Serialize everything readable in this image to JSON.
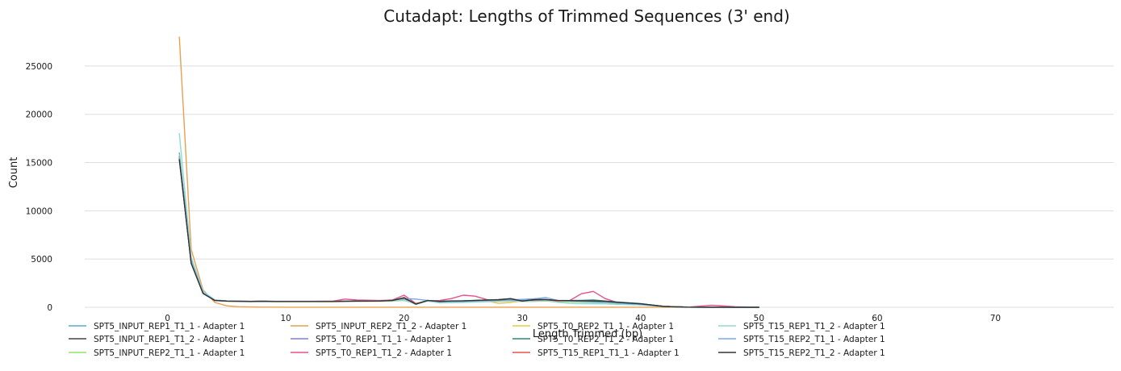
{
  "chart_data": {
    "type": "line",
    "title": "Cutadapt: Lengths of Trimmed Sequences (3' end)",
    "xlabel": "Length Trimmed (bp)",
    "ylabel": "Count",
    "xlim": [
      -7,
      80
    ],
    "ylim": [
      0,
      28500
    ],
    "xticks": [
      0,
      10,
      20,
      30,
      40,
      50,
      60,
      70
    ],
    "yticks": [
      0,
      5000,
      10000,
      15000,
      20000,
      25000
    ],
    "grid": "horizontal",
    "legend_position": "bottom",
    "x": [
      1,
      2,
      3,
      4,
      5,
      6,
      7,
      8,
      9,
      10,
      12,
      14,
      15,
      16,
      18,
      19,
      20,
      21,
      22,
      23,
      24,
      25,
      26,
      27,
      28,
      29,
      30,
      31,
      32,
      33,
      34,
      35,
      36,
      37,
      38,
      40,
      42,
      44,
      46,
      48,
      50
    ],
    "series": [
      {
        "name": "SPT5_INPUT_REP1_T1_1 - Adapter 1",
        "color": "#5fa8d3",
        "values": [
          16000,
          5000,
          1600,
          750,
          650,
          620,
          600,
          620,
          600,
          600,
          600,
          600,
          620,
          640,
          650,
          700,
          800,
          350,
          700,
          500,
          550,
          600,
          620,
          650,
          700,
          750,
          700,
          700,
          800,
          650,
          600,
          550,
          500,
          480,
          400,
          300,
          80,
          20,
          5,
          0,
          0
        ]
      },
      {
        "name": "SPT5_INPUT_REP1_T1_2 - Adapter 1",
        "color": "#444444",
        "values": [
          15400,
          4600,
          1450,
          720,
          640,
          620,
          600,
          620,
          600,
          600,
          600,
          600,
          620,
          640,
          650,
          700,
          1000,
          320,
          700,
          600,
          650,
          650,
          700,
          750,
          800,
          900,
          650,
          800,
          800,
          700,
          680,
          650,
          620,
          600,
          500,
          350,
          80,
          20,
          5,
          0,
          0
        ]
      },
      {
        "name": "SPT5_INPUT_REP2_T1_1 - Adapter 1",
        "color": "#8fe36b",
        "values": [
          15800,
          4800,
          1500,
          700,
          620,
          600,
          580,
          600,
          580,
          580,
          580,
          580,
          600,
          600,
          620,
          650,
          700,
          400,
          650,
          500,
          520,
          550,
          580,
          600,
          620,
          650,
          600,
          620,
          650,
          600,
          580,
          550,
          520,
          500,
          420,
          300,
          70,
          20,
          5,
          0,
          0
        ]
      },
      {
        "name": "SPT5_INPUT_REP2_T1_2 - Adapter 1",
        "color": "#e8a050",
        "values": [
          28000,
          6000,
          1800,
          500,
          150,
          60,
          30,
          20,
          15,
          10,
          10,
          10,
          10,
          10,
          10,
          10,
          10,
          10,
          10,
          10,
          10,
          10,
          10,
          10,
          10,
          10,
          10,
          10,
          10,
          10,
          10,
          10,
          10,
          10,
          10,
          10,
          10,
          10,
          5,
          0,
          0
        ]
      },
      {
        "name": "SPT5_T0_REP1_T1_1 - Adapter 1",
        "color": "#7e7ee8",
        "values": [
          15600,
          4700,
          1500,
          700,
          640,
          620,
          600,
          610,
          600,
          600,
          600,
          600,
          620,
          630,
          640,
          680,
          760,
          380,
          680,
          560,
          580,
          600,
          640,
          680,
          720,
          760,
          700,
          720,
          760,
          680,
          650,
          620,
          580,
          560,
          460,
          320,
          80,
          20,
          5,
          0,
          0
        ]
      },
      {
        "name": "SPT5_T0_REP1_T1_2 - Adapter 1",
        "color": "#e8508a",
        "values": [
          15500,
          4650,
          1480,
          720,
          660,
          640,
          620,
          640,
          620,
          620,
          620,
          640,
          850,
          750,
          700,
          750,
          1250,
          400,
          650,
          700,
          900,
          1250,
          1150,
          800,
          700,
          800,
          600,
          700,
          800,
          600,
          700,
          1400,
          1650,
          900,
          500,
          350,
          80,
          20,
          220,
          60,
          0
        ]
      },
      {
        "name": "SPT5_T0_REP2_T1_1 - Adapter 1",
        "color": "#e8c94a",
        "values": [
          15700,
          4750,
          1520,
          710,
          630,
          610,
          590,
          610,
          590,
          590,
          590,
          590,
          610,
          620,
          630,
          660,
          740,
          390,
          660,
          540,
          560,
          580,
          620,
          660,
          400,
          500,
          650,
          680,
          720,
          650,
          620,
          590,
          560,
          540,
          440,
          310,
          75,
          20,
          5,
          0,
          0
        ]
      },
      {
        "name": "SPT5_T0_REP2_T1_2 - Adapter 1",
        "color": "#2a8a7a",
        "values": [
          15450,
          4620,
          1460,
          720,
          650,
          630,
          610,
          630,
          610,
          610,
          610,
          610,
          630,
          650,
          660,
          710,
          950,
          340,
          700,
          620,
          660,
          680,
          720,
          760,
          780,
          880,
          660,
          780,
          780,
          700,
          700,
          720,
          760,
          650,
          550,
          380,
          90,
          20,
          5,
          0,
          0
        ]
      },
      {
        "name": "SPT5_T15_REP1_T1_1 - Adapter 1",
        "color": "#e8504a",
        "values": [
          15550,
          4680,
          1490,
          700,
          640,
          620,
          600,
          620,
          600,
          600,
          600,
          620,
          640,
          650,
          660,
          700,
          780,
          360,
          680,
          560,
          600,
          620,
          660,
          700,
          740,
          780,
          680,
          720,
          760,
          680,
          660,
          640,
          600,
          580,
          480,
          330,
          80,
          20,
          5,
          0,
          0
        ]
      },
      {
        "name": "SPT5_T15_REP1_T1_2 - Adapter 1",
        "color": "#8fdcd0",
        "values": [
          18000,
          5200,
          1650,
          760,
          660,
          630,
          610,
          620,
          600,
          600,
          600,
          600,
          620,
          630,
          640,
          680,
          760,
          300,
          640,
          450,
          480,
          500,
          540,
          580,
          600,
          640,
          600,
          620,
          680,
          520,
          420,
          380,
          360,
          350,
          300,
          250,
          70,
          20,
          5,
          0,
          0
        ]
      },
      {
        "name": "SPT5_T15_REP2_T1_1 - Adapter 1",
        "color": "#7aa8e8",
        "values": [
          15650,
          4720,
          1510,
          720,
          650,
          630,
          610,
          630,
          610,
          610,
          610,
          610,
          630,
          640,
          650,
          690,
          900,
          850,
          700,
          580,
          600,
          620,
          660,
          700,
          740,
          780,
          820,
          880,
          1000,
          700,
          640,
          600,
          560,
          540,
          440,
          300,
          75,
          20,
          5,
          0,
          0
        ]
      },
      {
        "name": "SPT5_T15_REP2_T1_2 - Adapter 1",
        "color": "#333333",
        "values": [
          15300,
          4550,
          1430,
          710,
          640,
          620,
          600,
          620,
          600,
          600,
          600,
          600,
          620,
          640,
          650,
          700,
          980,
          330,
          700,
          610,
          650,
          660,
          700,
          740,
          780,
          890,
          640,
          790,
          790,
          700,
          690,
          680,
          650,
          620,
          520,
          360,
          85,
          20,
          5,
          0,
          0
        ]
      }
    ]
  }
}
